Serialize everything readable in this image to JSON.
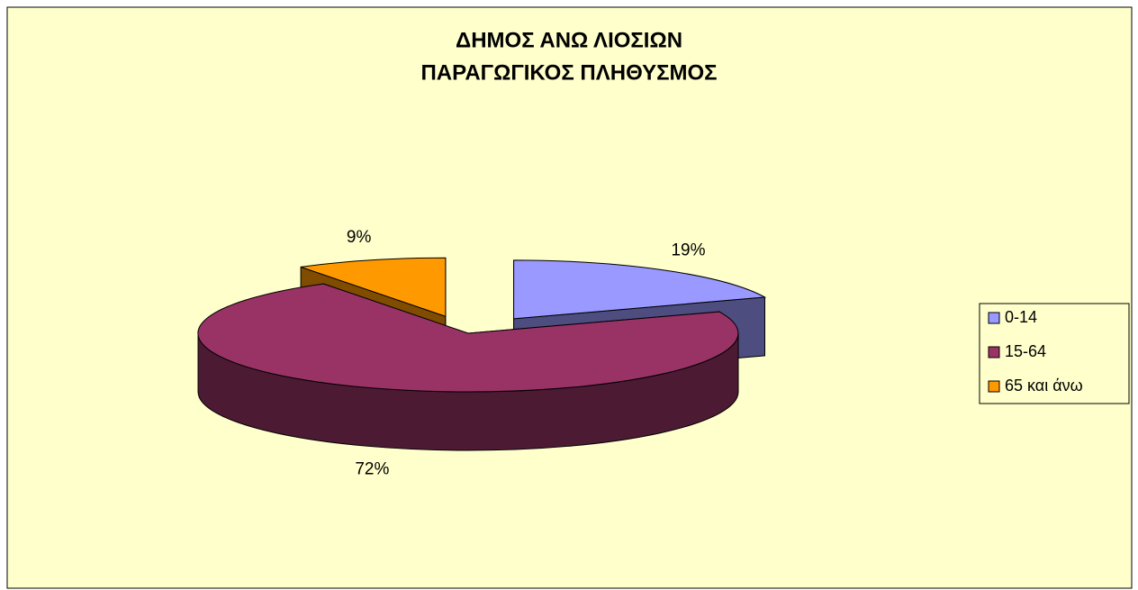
{
  "chart_data": {
    "type": "pie",
    "title": "ΔΗΜΟΣ ΑΝΩ ΛΙΟΣΙΩΝ",
    "subtitle": "ΠΑΡΑΓΩΓΙΚΟΣ ΠΛΗΘΥΣΜΟΣ",
    "categories": [
      "0-14",
      "15-64",
      "65 και άνω"
    ],
    "values": [
      19,
      72,
      9
    ],
    "value_labels": [
      "19%",
      "72%",
      "9%"
    ],
    "colors": [
      "#9999ff",
      "#993366",
      "#ff9900"
    ],
    "legend": "right"
  }
}
